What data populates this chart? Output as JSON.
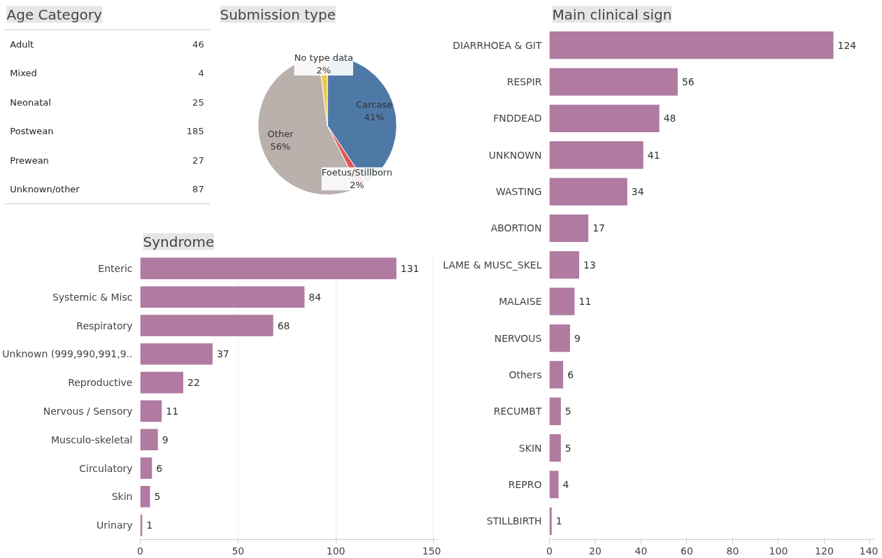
{
  "chart_data": [
    {
      "type": "other",
      "title": "Age Category",
      "categories": [
        "Adult",
        "Mixed",
        "Neonatal",
        "Postwean",
        "Prewean",
        "Unknown/other"
      ],
      "values": [
        46,
        4,
        25,
        185,
        27,
        87
      ],
      "data_labels": true
    },
    {
      "type": "pie",
      "title": "Submission type",
      "categories": [
        "Carcase",
        "Foetus/Stillborn",
        "Other",
        "No type data"
      ],
      "values": [
        41,
        2,
        56,
        2
      ],
      "colors": [
        "#4e79a7",
        "#e15759",
        "#bab0ac",
        "#edc948"
      ],
      "value_labels": [
        "41%",
        "2%",
        "56%",
        "2%"
      ]
    },
    {
      "type": "bar",
      "orientation": "horizontal",
      "title": "Syndrome",
      "categories": [
        "Enteric",
        "Systemic & Misc",
        "Respiratory",
        "Unknown (999,990,991,9..",
        "Reproductive",
        "Nervous / Sensory",
        "Musculo-skeletal",
        "Circulatory",
        "Skin",
        "Urinary"
      ],
      "values": [
        131,
        84,
        68,
        37,
        22,
        11,
        9,
        6,
        5,
        1
      ],
      "color": "#b07aa1",
      "xlim": [
        0,
        152
      ],
      "xticks": [
        0,
        50,
        100,
        150
      ],
      "grid": "x",
      "data_labels": true
    },
    {
      "type": "bar",
      "orientation": "horizontal",
      "title": "Main clinical sign",
      "categories": [
        "DIARRHOEA & GIT",
        "RESPIR",
        "FNDDEAD",
        "UNKNOWN",
        "WASTING",
        "ABORTION",
        "LAME & MUSC_SKEL",
        "MALAISE",
        "NERVOUS",
        "Others",
        "RECUMBT",
        "SKIN",
        "REPRO",
        "STILLBIRTH"
      ],
      "values": [
        124,
        56,
        48,
        41,
        34,
        17,
        13,
        11,
        9,
        6,
        5,
        5,
        4,
        1
      ],
      "color": "#b07aa1",
      "xlim": [
        0,
        142
      ],
      "xticks": [
        0,
        20,
        40,
        60,
        80,
        100,
        120,
        140
      ],
      "data_labels": true
    }
  ]
}
